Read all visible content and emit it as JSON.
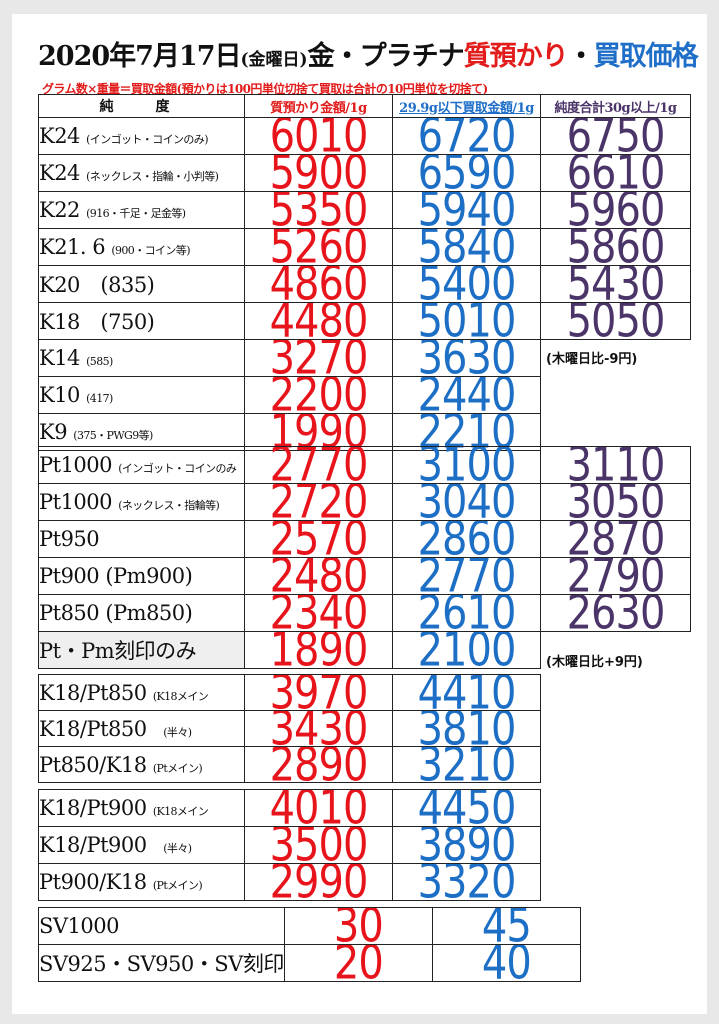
{
  "title": {
    "date": "2020年7月17日",
    "weekday": "(金曜日)",
    "metal": "金・プラチナ",
    "pawn": "質預かり",
    "dot": "・",
    "buy": "買取価格"
  },
  "subtitle": "グラム数×重量＝買取金額(預かりは100円単位切捨て買取は合計の10円単位を切捨て)",
  "headers": {
    "purity": "純　度",
    "pawn": "質預かり金額/1g",
    "buy": "29.9g以下買取金額/1g",
    "pure": "純度合計30g以上/1g"
  },
  "gold": [
    {
      "name": "K24",
      "note": "(インゴット・コインのみ)",
      "pawn": "6010",
      "buy": "6720",
      "pure": "6750"
    },
    {
      "name": "K24",
      "note": "(ネックレス・指輪・小判等)",
      "pawn": "5900",
      "buy": "6590",
      "pure": "6610"
    },
    {
      "name": "K22",
      "note": "(916・千足・足金等)",
      "pawn": "5350",
      "buy": "5940",
      "pure": "5960"
    },
    {
      "name": "K21. 6",
      "note": "(900・コイン等)",
      "pawn": "5260",
      "buy": "5840",
      "pure": "5860"
    },
    {
      "name": "K20　(835)",
      "note": "",
      "pawn": "4860",
      "buy": "5400",
      "pure": "5430"
    },
    {
      "name": "K18　(750)",
      "note": "",
      "pawn": "4480",
      "buy": "5010",
      "pure": "5050"
    },
    {
      "name": "K14",
      "note": "(585)",
      "pawn": "3270",
      "buy": "3630",
      "pure": ""
    },
    {
      "name": "K10",
      "note": "(417)",
      "pawn": "2200",
      "buy": "2440",
      "pure": ""
    },
    {
      "name": "K9",
      "note": "(375・PWG9等)",
      "pawn": "1990",
      "buy": "2210",
      "pure": ""
    }
  ],
  "gold_note": "(木曜日比-9円)",
  "platinum": [
    {
      "name": "Pt1000",
      "note": "(インゴット・コインのみ",
      "pawn": "2770",
      "buy": "3100",
      "pure": "3110"
    },
    {
      "name": "Pt1000",
      "note": "(ネックレス・指輪等)",
      "pawn": "2720",
      "buy": "3040",
      "pure": "3050"
    },
    {
      "name": "Pt950",
      "note": "",
      "pawn": "2570",
      "buy": "2860",
      "pure": "2870"
    },
    {
      "name": "Pt900 (Pm900)",
      "note": "",
      "pawn": "2480",
      "buy": "2770",
      "pure": "2790"
    },
    {
      "name": "Pt850 (Pm850)",
      "note": "",
      "pawn": "2340",
      "buy": "2610",
      "pure": "2630"
    },
    {
      "name": "Pt・Pm刻印のみ",
      "note": "",
      "pawn": "1890",
      "buy": "2100",
      "pure": ""
    }
  ],
  "platinum_note": "(木曜日比+9円)",
  "combo850": [
    {
      "name": "K18/Pt850",
      "note": "(K18メイン",
      "pawn": "3970",
      "buy": "4410"
    },
    {
      "name": "K18/Pt850",
      "note": "　(半々)",
      "pawn": "3430",
      "buy": "3810"
    },
    {
      "name": "Pt850/K18",
      "note": "(Ptメイン)",
      "pawn": "2890",
      "buy": "3210"
    }
  ],
  "combo900": [
    {
      "name": "K18/Pt900",
      "note": "(K18メイン",
      "pawn": "4010",
      "buy": "4450"
    },
    {
      "name": "K18/Pt900",
      "note": "　(半々)",
      "pawn": "3500",
      "buy": "3890"
    },
    {
      "name": "Pt900/K18",
      "note": "(Ptメイン)",
      "pawn": "2990",
      "buy": "3320"
    }
  ],
  "silver": [
    {
      "name": "SV1000",
      "note": "",
      "pawn": "30",
      "buy": "45"
    },
    {
      "name": "SV925・SV950・SV刻印",
      "note": "",
      "pawn": "20",
      "buy": "40"
    }
  ],
  "colors": {
    "pawn": "#e8141c",
    "buy": "#1d6fc6",
    "pure": "#4a3468",
    "title_red": "#e21b1b"
  }
}
